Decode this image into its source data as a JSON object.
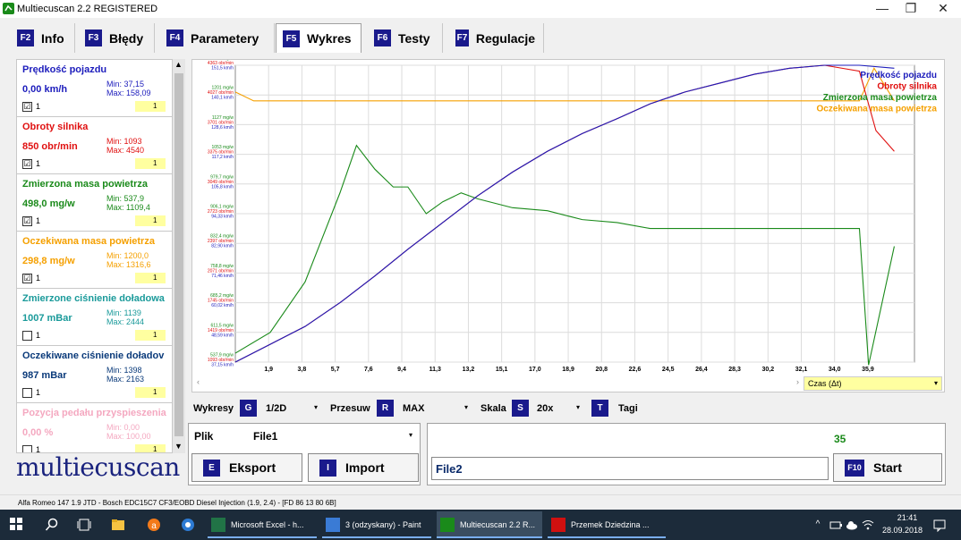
{
  "window": {
    "title": "Multiecuscan 2.2 REGISTERED",
    "minimize": "—",
    "maximize": "❐",
    "close": "✕"
  },
  "tabs": [
    {
      "key": "F2",
      "label": "Info"
    },
    {
      "key": "F3",
      "label": "Błędy"
    },
    {
      "key": "F4",
      "label": "Parametery"
    },
    {
      "key": "F5",
      "label": "Wykres"
    },
    {
      "key": "F6",
      "label": "Testy"
    },
    {
      "key": "F7",
      "label": "Regulacje"
    }
  ],
  "params": [
    {
      "name": "Prędkość pojazdu",
      "value": "0,00 km/h",
      "min": "Min: 37,15",
      "max": "Max: 158,09",
      "checked": "☑",
      "one": "1",
      "sel": "1",
      "color": "#1c1cbc",
      "minmaxColor": "#1c1cbc"
    },
    {
      "name": "Obroty silnika",
      "value": "850 obr/min",
      "min": "Min: 1093",
      "max": "Max: 4540",
      "checked": "☑",
      "one": "1",
      "sel": "1",
      "color": "#e01010",
      "minmaxColor": "#e01010"
    },
    {
      "name": "Zmierzona masa powietrza",
      "value": "498,0 mg/w",
      "min": "Min: 537,9",
      "max": "Max: 1109,4",
      "checked": "☑",
      "one": "1",
      "sel": "1",
      "color": "#1a8a1a",
      "minmaxColor": "#1a8a1a"
    },
    {
      "name": "Oczekiwana masa powietrza",
      "value": "298,8 mg/w",
      "min": "Min: 1200,0",
      "max": "Max: 1316,6",
      "checked": "☑",
      "one": "1",
      "sel": "1",
      "color": "#f5a000",
      "minmaxColor": "#f5a000"
    },
    {
      "name": "Zmierzone ciśnienie doładowa",
      "value": "1007 mBar",
      "min": "Min: 1139",
      "max": "Max: 2444",
      "checked": "",
      "one": "1",
      "sel": "1",
      "color": "#1a9a9a",
      "minmaxColor": "#1a9a9a"
    },
    {
      "name": "Oczekiwane ciśnienie doładov",
      "value": "987 mBar",
      "min": "Min: 1398",
      "max": "Max: 2163",
      "checked": "",
      "one": "1",
      "sel": "1",
      "color": "#0a3a7a",
      "minmaxColor": "#0a3a7a"
    },
    {
      "name": "Pozycja pedału przyspieszenia",
      "value": "0,00 %",
      "min": "Min: 0,00",
      "max": "Max: 100,00",
      "checked": "",
      "one": "1",
      "sel": "1",
      "color": "#f4a8c0",
      "minmaxColor": "#f4a8c0"
    }
  ],
  "logo": "multiecuscan",
  "chart_data": {
    "type": "line",
    "x_tick_labels": [
      "1,9",
      "3,8",
      "5,7",
      "7,6",
      "9,4",
      "11,3",
      "13,2",
      "15,1",
      "17,0",
      "18,9",
      "20,8",
      "22,6",
      "24,5",
      "26,4",
      "28,3",
      "30,2",
      "32,1",
      "34,0",
      "35,9"
    ],
    "xlim": [
      0,
      37
    ],
    "x_axis_title": "Czas (Δt)",
    "y_labels": [
      {
        "lines": [
          "1274 mg/w",
          "4363 obr/min",
          "151,5 km/h"
        ]
      },
      {
        "lines": [
          "1201 mg/w",
          "4027 obr/min",
          "140,1 km/h"
        ]
      },
      {
        "lines": [
          "1127 mg/w",
          "3701 obr/min",
          "128,6 km/h"
        ]
      },
      {
        "lines": [
          "1053 mg/w",
          "3375 obr/min",
          "117,2 km/h"
        ]
      },
      {
        "lines": [
          "979,7 mg/w",
          "3049 obr/min",
          "105,8 km/h"
        ]
      },
      {
        "lines": [
          "906,1 mg/w",
          "2723 obr/min",
          "94,33 km/h"
        ]
      },
      {
        "lines": [
          "832,4 mg/w",
          "2397 obr/min",
          "82,90 km/h"
        ]
      },
      {
        "lines": [
          "758,8 mg/w",
          "2071 obr/min",
          "71,46 km/h"
        ]
      },
      {
        "lines": [
          "685,2 mg/w",
          "1745 obr/min",
          "60,02 km/h"
        ]
      },
      {
        "lines": [
          "611,5 mg/w",
          "1419 obr/min",
          "48,59 km/h"
        ]
      },
      {
        "lines": [
          "537,9 mg/w",
          "1093 obr/min",
          "37,15 km/h"
        ]
      }
    ],
    "ylim": [
      0,
      1
    ],
    "grid": true,
    "legend_position": "top-right",
    "series": [
      {
        "name": "Prędkość pojazdu",
        "color": "#1c1cbc",
        "x": [
          0,
          1.9,
          3.8,
          5.7,
          7.6,
          9.4,
          11.3,
          13.2,
          15.1,
          17.0,
          18.9,
          20.8,
          22.6,
          24.5,
          26.4,
          28.3,
          30.2,
          32.1,
          34.0,
          35.9
        ],
        "y": [
          0.0,
          0.06,
          0.12,
          0.2,
          0.29,
          0.38,
          0.47,
          0.56,
          0.64,
          0.71,
          0.77,
          0.82,
          0.87,
          0.91,
          0.94,
          0.97,
          0.99,
          1.0,
          1.0,
          0.99
        ]
      },
      {
        "name": "Obroty silnika",
        "color": "#e01010",
        "x": [
          0,
          1.9,
          3.8,
          5.7,
          7.6,
          9.4,
          11.3,
          13.2,
          15.1,
          17.0,
          18.9,
          20.8,
          22.6,
          24.5,
          26.4,
          28.3,
          30.2,
          32.1,
          34.0,
          34.9,
          35.9
        ],
        "y": [
          0.0,
          0.06,
          0.12,
          0.2,
          0.29,
          0.38,
          0.47,
          0.56,
          0.64,
          0.71,
          0.77,
          0.82,
          0.87,
          0.91,
          0.94,
          0.97,
          0.99,
          1.0,
          0.98,
          0.78,
          0.71
        ]
      },
      {
        "name": "Zmierzona masa powietrza",
        "color": "#1a8a1a",
        "x": [
          0,
          1.9,
          3.8,
          5.7,
          6.6,
          7.6,
          8.6,
          9.4,
          10.4,
          11.3,
          12.3,
          13.2,
          15.1,
          17.0,
          18.9,
          20.8,
          22.6,
          24.5,
          26.4,
          28.3,
          30.2,
          32.1,
          34.0,
          34.5,
          35.9
        ],
        "y": [
          0.03,
          0.1,
          0.27,
          0.57,
          0.73,
          0.65,
          0.59,
          0.59,
          0.5,
          0.54,
          0.57,
          0.55,
          0.52,
          0.51,
          0.48,
          0.47,
          0.45,
          0.45,
          0.45,
          0.45,
          0.45,
          0.45,
          0.45,
          -0.01,
          0.39
        ]
      },
      {
        "name": "Oczekiwana masa powietrza",
        "color": "#f5a000",
        "x": [
          0,
          1.0,
          3.8,
          10.0,
          20.0,
          30.0,
          34.0,
          34.8,
          35.9
        ],
        "y": [
          0.91,
          0.88,
          0.88,
          0.88,
          0.88,
          0.88,
          0.88,
          0.99,
          0.88
        ]
      }
    ]
  },
  "controls": {
    "wykresy_label": "Wykresy",
    "wykresy_key": "G",
    "wykresy_value": "1/2D",
    "przesuw_label": "Przesuw",
    "przesuw_key": "R",
    "przesuw_value": "MAX",
    "skala_label": "Skala",
    "skala_key": "S",
    "skala_value": "20x",
    "tagi_key": "T",
    "tagi_label": "Tagi",
    "arrow": "▾"
  },
  "bottom_left": {
    "plik_label": "Plik",
    "file_value": "File1",
    "eksport_key": "E",
    "eksport_label": "Eksport",
    "import_key": "I",
    "import_label": "Import"
  },
  "bottom_right": {
    "counter": "35",
    "file2": "File2",
    "start_key": "F10",
    "start_label": "Start"
  },
  "status": "Alfa Romeo 147 1.9 JTD - Bosch EDC15C7 CF3/EOBD Diesel Injection (1.9, 2.4) - [FD 86 13 80 6B]",
  "taskbar": {
    "apps": [
      {
        "label": "Microsoft Excel - h...",
        "color": "#217346"
      },
      {
        "label": "3 (odzyskany) - Paint",
        "color": "#3a7bd5"
      },
      {
        "label": "Multiecuscan 2.2 R...",
        "color": "#1a8a1a"
      },
      {
        "label": "Przemek Dziedzina ...",
        "color": "#d01010"
      }
    ],
    "time": "21:41",
    "date": "28.09.2018"
  }
}
